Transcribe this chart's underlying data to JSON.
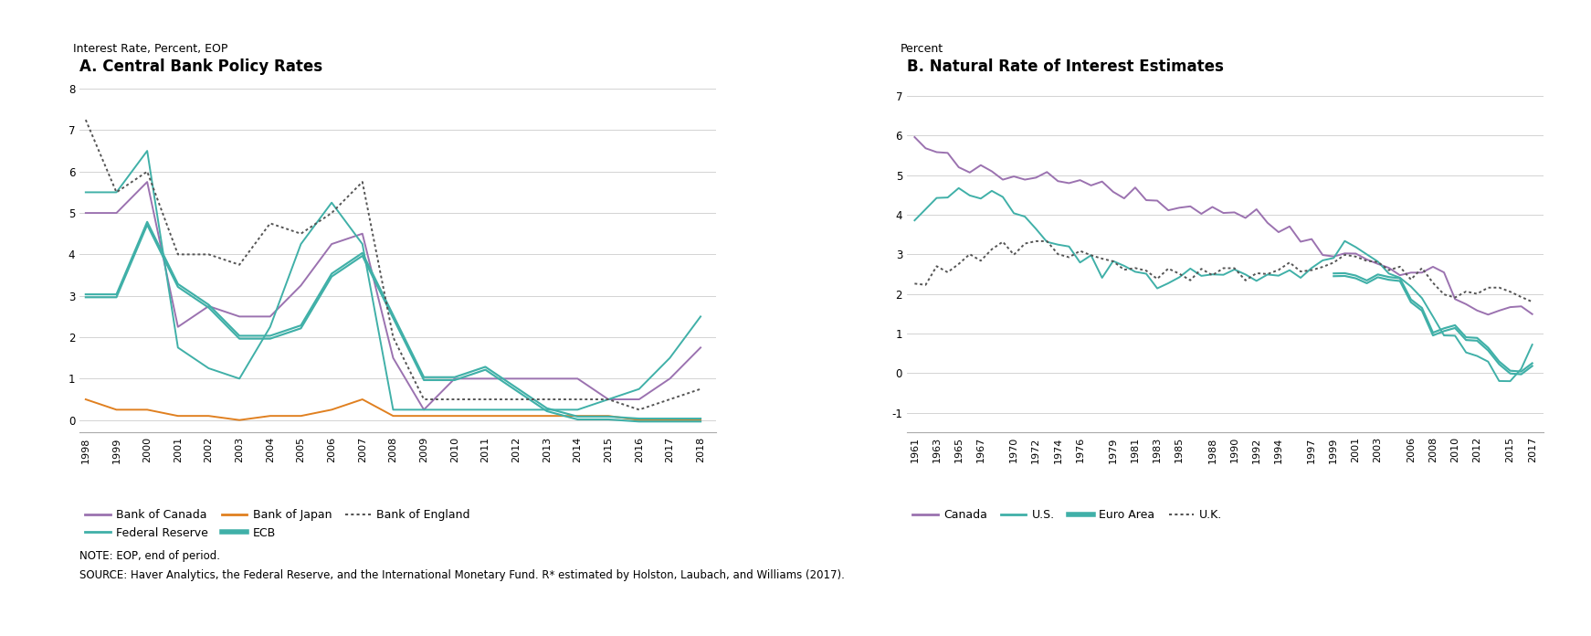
{
  "panel_a_title": "A. Central Bank Policy Rates",
  "panel_b_title": "B. Natural Rate of Interest Estimates",
  "panel_a_ylabel": "Interest Rate, Percent, EOP",
  "panel_b_ylabel": "Percent",
  "note": "NOTE: EOP, end of period.",
  "source": "SOURCE: Haver Analytics, the Federal Reserve, and the International Monetary Fund. R* estimated by Holston, Laubach, and Williams (2017).",
  "panel_a_years": [
    1998,
    1999,
    2000,
    2001,
    2002,
    2003,
    2004,
    2005,
    2006,
    2007,
    2008,
    2009,
    2010,
    2011,
    2012,
    2013,
    2014,
    2015,
    2016,
    2017,
    2018
  ],
  "bank_of_canada": [
    5.0,
    5.0,
    5.75,
    2.25,
    2.75,
    2.5,
    2.5,
    3.25,
    4.25,
    4.5,
    1.5,
    0.25,
    1.0,
    1.0,
    1.0,
    1.0,
    1.0,
    0.5,
    0.5,
    1.0,
    1.75
  ],
  "federal_reserve": [
    5.5,
    5.5,
    6.5,
    1.75,
    1.25,
    1.0,
    2.25,
    4.25,
    5.25,
    4.25,
    0.25,
    0.25,
    0.25,
    0.25,
    0.25,
    0.25,
    0.25,
    0.5,
    0.75,
    1.5,
    2.5
  ],
  "bank_of_japan": [
    0.5,
    0.25,
    0.25,
    0.1,
    0.1,
    0.0,
    0.1,
    0.1,
    0.25,
    0.5,
    0.1,
    0.1,
    0.1,
    0.1,
    0.1,
    0.1,
    0.1,
    0.1,
    0.0,
    0.0,
    0.0
  ],
  "ecb": [
    3.0,
    3.0,
    4.75,
    3.25,
    2.75,
    2.0,
    2.0,
    2.25,
    3.5,
    4.0,
    2.5,
    1.0,
    1.0,
    1.25,
    0.75,
    0.25,
    0.05,
    0.05,
    0.0,
    0.0,
    0.0
  ],
  "bank_of_england": [
    7.25,
    5.5,
    6.0,
    4.0,
    4.0,
    3.75,
    4.75,
    4.5,
    5.0,
    5.75,
    2.0,
    0.5,
    0.5,
    0.5,
    0.5,
    0.5,
    0.5,
    0.5,
    0.25,
    0.5,
    0.75
  ],
  "color_canada": "#9b72b0",
  "color_fed": "#40b0a8",
  "color_japan": "#e08020",
  "color_ecb": "#40b0a8",
  "color_boe": "#555555",
  "color_canada_nat": "#9b72b0",
  "color_us_nat": "#40b0a8",
  "color_euro_nat": "#40b0a8",
  "color_uk_nat": "#555555",
  "panel_a_ylim": [
    -0.3,
    8.3
  ],
  "panel_a_yticks": [
    0,
    1,
    2,
    3,
    4,
    5,
    6,
    7,
    8
  ],
  "panel_b_ylim": [
    -1.5,
    7.5
  ],
  "panel_b_yticks": [
    -1,
    0,
    1,
    2,
    3,
    4,
    5,
    6,
    7
  ]
}
